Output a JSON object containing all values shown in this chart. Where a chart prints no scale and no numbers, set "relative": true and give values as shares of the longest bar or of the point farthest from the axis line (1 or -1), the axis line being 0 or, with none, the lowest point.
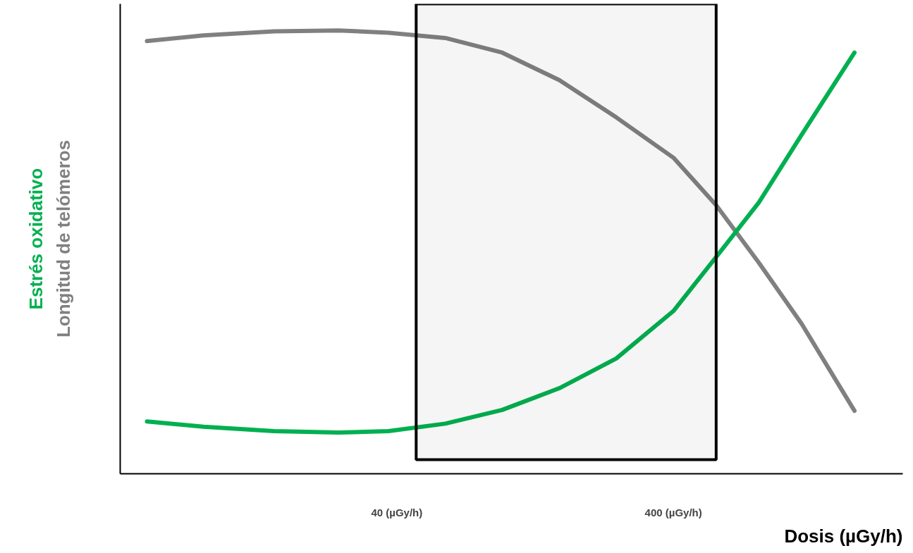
{
  "chart_data": {
    "type": "line",
    "relative": true,
    "log": "x",
    "xlabel": "Dosis (µGy/h)",
    "xlim": [
      4,
      2700
    ],
    "xticks": [
      {
        "value": 40,
        "label": "40 (µGy/h)"
      },
      {
        "value": 400,
        "label": "400 (µGy/h)"
      }
    ],
    "grid": false,
    "marker": "none",
    "line_style": "solid",
    "bands": [
      {
        "axis": "x",
        "from": 47,
        "to": 571,
        "color": "#000000"
      }
    ],
    "series": [
      {
        "name": "Longitud de telómeros",
        "color": "#808080",
        "x": [
          5.0,
          8.0,
          14.4,
          24.6,
          37.3,
          59.9,
          96.2,
          154.8,
          248.6,
          400,
          571,
          815,
          1164,
          1806
        ],
        "values": [
          0.976,
          0.989,
          0.998,
          1.0,
          0.995,
          0.983,
          0.95,
          0.888,
          0.804,
          0.713,
          0.606,
          0.476,
          0.338,
          0.142
        ]
      },
      {
        "name": "Estrés oxidativo",
        "color": "#00b050",
        "x": [
          5.0,
          8.0,
          14.4,
          24.6,
          37.3,
          59.9,
          96.2,
          154.8,
          248.6,
          400,
          571,
          815,
          1164,
          1806
        ],
        "values": [
          0.118,
          0.106,
          0.096,
          0.093,
          0.096,
          0.113,
          0.144,
          0.193,
          0.26,
          0.367,
          0.489,
          0.612,
          0.765,
          0.95
        ]
      }
    ]
  }
}
